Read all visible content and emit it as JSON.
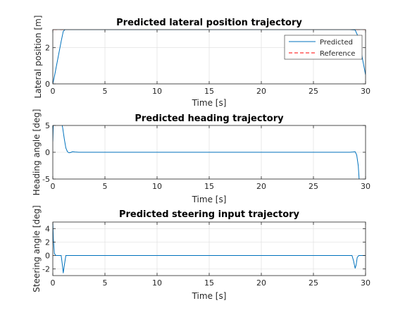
{
  "colors": {
    "predicted": "#0072BD",
    "reference": "#FF0000",
    "axis": "#262626",
    "grid": "#dcdcdc",
    "background": "#ffffff"
  },
  "chart_data": [
    {
      "type": "line",
      "title": "Predicted lateral position trajectory",
      "xlabel": "Time [s]",
      "ylabel": "Lateral position [m]",
      "xlim": [
        0,
        30
      ],
      "ylim": [
        0,
        3
      ],
      "xticks": [
        0,
        5,
        10,
        15,
        20,
        25,
        30
      ],
      "yticks": [
        0,
        2
      ],
      "grid": true,
      "legend": {
        "placement": "top-right",
        "entries": [
          "Predicted",
          "Reference"
        ]
      },
      "series": [
        {
          "name": "Predicted",
          "style": "solid",
          "color": "#0072BD",
          "x": [
            0,
            0.2,
            0.5,
            0.8,
            1.0,
            1.2,
            1.5,
            2,
            5,
            10,
            15,
            20,
            25,
            28.5,
            29.0,
            29.3,
            29.6,
            30
          ],
          "y": [
            0,
            0.55,
            1.45,
            2.35,
            2.9,
            3.02,
            3.0,
            3.0,
            3.0,
            3.0,
            3.0,
            3.0,
            3.0,
            3.0,
            2.98,
            2.6,
            1.7,
            0.5
          ]
        },
        {
          "name": "Reference",
          "style": "dashed",
          "color": "#FF0000",
          "x": [
            0,
            30
          ],
          "y": [
            3,
            3
          ]
        }
      ]
    },
    {
      "type": "line",
      "title": "Predicted heading trajectory",
      "xlabel": "Time [s]",
      "ylabel": "Heading angle [deg]",
      "xlim": [
        0,
        30
      ],
      "ylim": [
        -5,
        5
      ],
      "xticks": [
        0,
        5,
        10,
        15,
        20,
        25,
        30
      ],
      "yticks": [
        -5,
        0,
        5
      ],
      "grid": true,
      "series": [
        {
          "style": "solid",
          "color": "#0072BD",
          "x": [
            0,
            0.05,
            0.12,
            0.2,
            0.3,
            0.85,
            0.95,
            1.1,
            1.25,
            1.4,
            1.55,
            1.7,
            1.9,
            2.1,
            2.5,
            5,
            10,
            15,
            20,
            25,
            28.5,
            28.8,
            29.0,
            29.15,
            29.3,
            29.4
          ],
          "y": [
            2,
            5.5,
            5.5,
            5.5,
            5.5,
            5.5,
            4.5,
            2.5,
            0.8,
            0.1,
            -0.1,
            -0.05,
            0.1,
            0.05,
            0,
            0,
            0,
            0,
            0,
            0,
            0,
            0.05,
            0.1,
            -0.5,
            -2.5,
            -5.5
          ]
        }
      ]
    },
    {
      "type": "line",
      "title": "Predicted steering input trajectory",
      "xlabel": "Time [s]",
      "ylabel": "Steering angle [deg]",
      "xlim": [
        0,
        30
      ],
      "ylim": [
        -3,
        5
      ],
      "xticks": [
        0,
        5,
        10,
        15,
        20,
        25,
        30
      ],
      "yticks": [
        -2,
        0,
        2,
        4
      ],
      "grid": true,
      "series": [
        {
          "style": "solid",
          "color": "#0072BD",
          "x": [
            0,
            0.05,
            0.15,
            0.3,
            0.6,
            0.8,
            0.9,
            1.0,
            1.1,
            1.25,
            1.5,
            2,
            5,
            10,
            15,
            20,
            25,
            28.7,
            28.85,
            29.0,
            29.1,
            29.2,
            29.35,
            29.5,
            30
          ],
          "y": [
            5,
            2.5,
            0.3,
            0,
            0,
            0,
            -1.2,
            -2.6,
            -1.5,
            0,
            0,
            0,
            0,
            0,
            0,
            0,
            0,
            0,
            -0.8,
            -1.9,
            -1.4,
            -0.3,
            0,
            0,
            0
          ]
        }
      ]
    }
  ]
}
